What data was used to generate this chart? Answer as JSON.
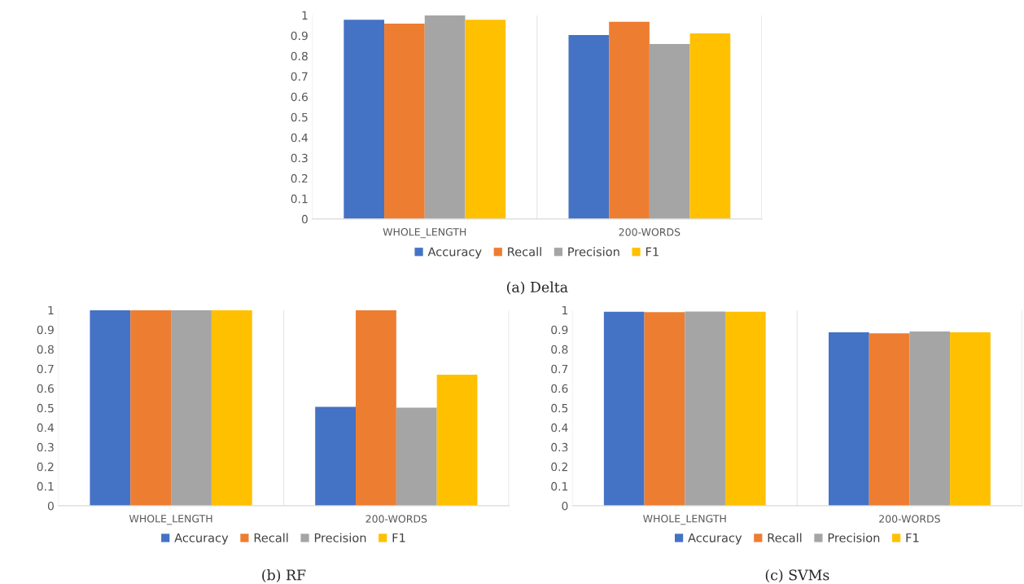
{
  "chart_data": [
    {
      "type": "bar",
      "title": "(a) Delta",
      "categories": [
        "WHOLE_LENGTH",
        "200-WORDS"
      ],
      "series": [
        {
          "name": "Accuracy",
          "color": "#4472c4",
          "values": [
            0.978,
            0.903
          ]
        },
        {
          "name": "Recall",
          "color": "#ed7d31",
          "values": [
            0.959,
            0.968
          ]
        },
        {
          "name": "Precision",
          "color": "#a5a5a5",
          "values": [
            1.0,
            0.859
          ]
        },
        {
          "name": "F1",
          "color": "#ffc000",
          "values": [
            0.978,
            0.911
          ]
        }
      ],
      "ylim": [
        0,
        1
      ],
      "yticks": [
        0,
        0.1,
        0.2,
        0.3,
        0.4,
        0.5,
        0.6,
        0.7,
        0.8,
        0.9,
        1
      ],
      "grid": "x",
      "legend": "bottom"
    },
    {
      "type": "bar",
      "title": "(b) RF",
      "categories": [
        "WHOLE_LENGTH",
        "200-WORDS"
      ],
      "series": [
        {
          "name": "Accuracy",
          "color": "#4472c4",
          "values": [
            1.0,
            0.506
          ]
        },
        {
          "name": "Recall",
          "color": "#ed7d31",
          "values": [
            1.0,
            1.0
          ]
        },
        {
          "name": "Precision",
          "color": "#a5a5a5",
          "values": [
            1.0,
            0.501
          ]
        },
        {
          "name": "F1",
          "color": "#ffc000",
          "values": [
            1.0,
            0.67
          ]
        }
      ],
      "ylim": [
        0,
        1
      ],
      "yticks": [
        0,
        0.1,
        0.2,
        0.3,
        0.4,
        0.5,
        0.6,
        0.7,
        0.8,
        0.9,
        1
      ],
      "grid": "x",
      "legend": "bottom"
    },
    {
      "type": "bar",
      "title": "(c) SVMs",
      "categories": [
        "WHOLE_LENGTH",
        "200-WORDS"
      ],
      "series": [
        {
          "name": "Accuracy",
          "color": "#4472c4",
          "values": [
            0.992,
            0.886
          ]
        },
        {
          "name": "Recall",
          "color": "#ed7d31",
          "values": [
            0.99,
            0.881
          ]
        },
        {
          "name": "Precision",
          "color": "#a5a5a5",
          "values": [
            0.993,
            0.891
          ]
        },
        {
          "name": "F1",
          "color": "#ffc000",
          "values": [
            0.992,
            0.886
          ]
        }
      ],
      "ylim": [
        0,
        1
      ],
      "yticks": [
        0,
        0.1,
        0.2,
        0.3,
        0.4,
        0.5,
        0.6,
        0.7,
        0.8,
        0.9,
        1
      ],
      "grid": "x",
      "legend": "bottom"
    }
  ]
}
